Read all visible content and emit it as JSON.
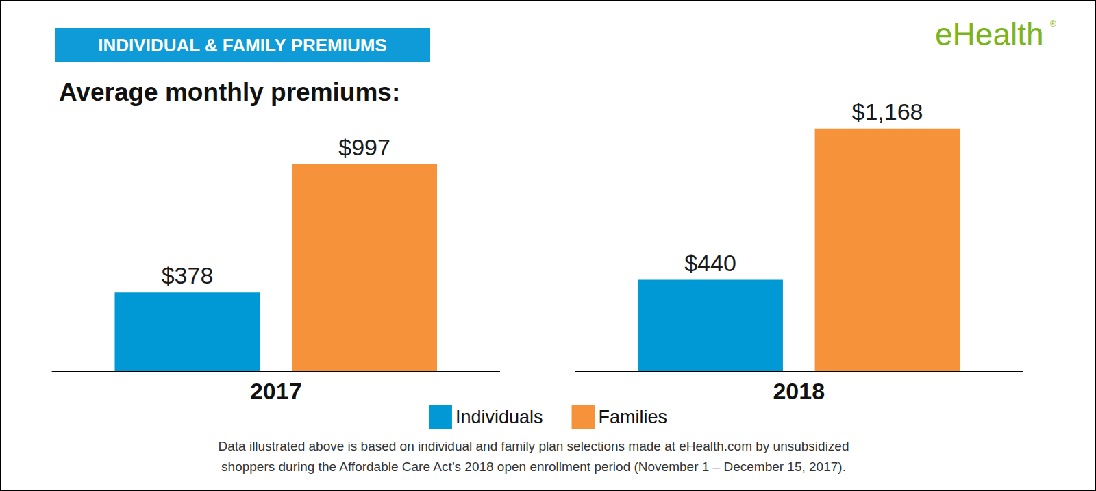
{
  "chart_data": {
    "type": "bar",
    "title": "Average monthly premiums:",
    "subtitle": "INDIVIDUAL & FAMILY PREMIUMS",
    "annotations": {
      "logo": "eHealth",
      "logo_mark": "®",
      "note": [
        "Data illustrated above is based on individual and family plan selections made at eHealth.com by unsubsidized",
        "shoppers during the Affordable Care Act’s 2018 open enrollment period (November 1 – December 15, 2017)."
      ]
    },
    "categories": [
      "2017",
      "2018"
    ],
    "series": [
      {
        "name": "Individuals",
        "color": "#0099d6",
        "values": [
          378,
          440
        ],
        "value_labels": [
          "$378",
          "$440"
        ]
      },
      {
        "name": "Families",
        "color": "#f6923a",
        "values": [
          997,
          1168
        ],
        "value_labels": [
          "$997",
          "$1,168"
        ]
      }
    ],
    "ylim": [
      0,
      1200
    ],
    "yticks": [
      0,
      1200
    ],
    "grid": false,
    "legend": "bottom",
    "data_labels": true,
    "tick_labels": "x"
  }
}
